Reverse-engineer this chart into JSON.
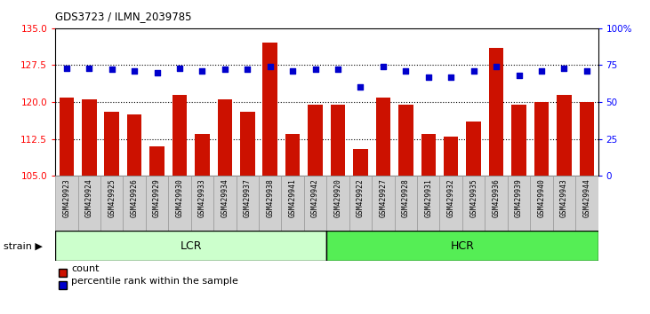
{
  "title": "GDS3723 / ILMN_2039785",
  "samples": [
    "GSM429923",
    "GSM429924",
    "GSM429925",
    "GSM429926",
    "GSM429929",
    "GSM429930",
    "GSM429933",
    "GSM429934",
    "GSM429937",
    "GSM429938",
    "GSM429941",
    "GSM429942",
    "GSM429920",
    "GSM429922",
    "GSM429927",
    "GSM429928",
    "GSM429931",
    "GSM429932",
    "GSM429935",
    "GSM429936",
    "GSM429939",
    "GSM429940",
    "GSM429943",
    "GSM429944"
  ],
  "counts": [
    121.0,
    120.5,
    118.0,
    117.5,
    111.0,
    121.5,
    113.5,
    120.5,
    118.0,
    132.0,
    113.5,
    119.5,
    119.5,
    110.5,
    121.0,
    119.5,
    113.5,
    113.0,
    116.0,
    131.0,
    119.5,
    120.0,
    121.5,
    120.0
  ],
  "percentile_ranks": [
    73,
    73,
    72,
    71,
    70,
    73,
    71,
    72,
    72,
    74,
    71,
    72,
    72,
    60,
    74,
    71,
    67,
    67,
    71,
    74,
    68,
    71,
    73,
    71
  ],
  "groups": [
    {
      "label": "LCR",
      "start": 0,
      "end": 12,
      "color": "#ccffcc"
    },
    {
      "label": "HCR",
      "start": 12,
      "end": 24,
      "color": "#55ee55"
    }
  ],
  "bar_color": "#cc1100",
  "dot_color": "#0000cc",
  "ylim_left": [
    105,
    135
  ],
  "ylim_right": [
    0,
    100
  ],
  "yticks_left": [
    105,
    112.5,
    120,
    127.5,
    135
  ],
  "yticks_right": [
    0,
    25,
    50,
    75,
    100
  ],
  "yticklabels_right": [
    "0",
    "25",
    "50",
    "75",
    "100%"
  ],
  "ticklabel_bg": "#d0d0d0",
  "ticklabel_edge": "#999999",
  "background_color": "#ffffff",
  "bar_width": 0.65,
  "strain_label": "strain"
}
